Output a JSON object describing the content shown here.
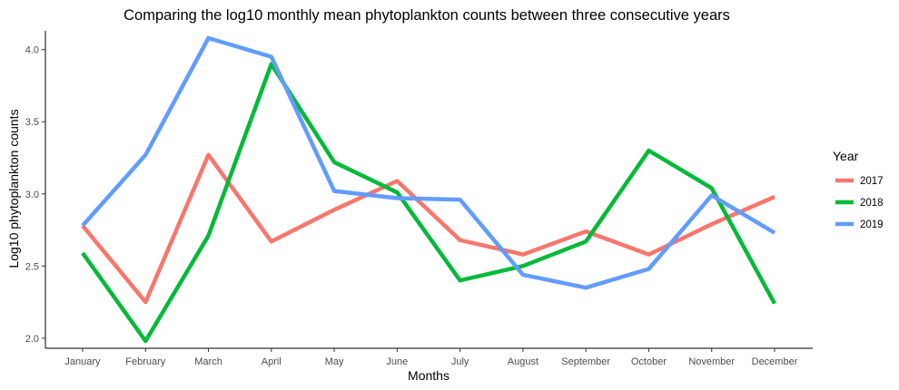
{
  "chart_data": {
    "type": "line",
    "title": "Comparing the log10 monthly mean phytoplankton counts between three consecutive years",
    "xlabel": "Months",
    "ylabel": "Log10 phytoplankton counts",
    "categories": [
      "January",
      "February",
      "March",
      "April",
      "May",
      "June",
      "July",
      "August",
      "September",
      "October",
      "November",
      "December"
    ],
    "ylim": [
      1.93,
      4.13
    ],
    "yticks": [
      "2.0",
      "2.5",
      "3.0",
      "3.5",
      "4.0"
    ],
    "legend_title": "Year",
    "legend_position": "right",
    "grid": false,
    "series": [
      {
        "name": "2017",
        "color": "#F8766D",
        "values": [
          2.78,
          2.25,
          3.27,
          2.67,
          2.89,
          3.09,
          2.68,
          2.58,
          2.74,
          2.58,
          2.79,
          2.98
        ]
      },
      {
        "name": "2018",
        "color": "#00BA38",
        "values": [
          2.59,
          1.98,
          2.71,
          3.9,
          3.22,
          3.01,
          2.4,
          2.5,
          2.67,
          3.3,
          3.04,
          2.24
        ]
      },
      {
        "name": "2019",
        "color": "#619CFF",
        "values": [
          2.78,
          3.27,
          4.08,
          3.95,
          3.02,
          2.97,
          2.96,
          2.44,
          2.35,
          2.48,
          2.99,
          2.73
        ]
      }
    ]
  }
}
